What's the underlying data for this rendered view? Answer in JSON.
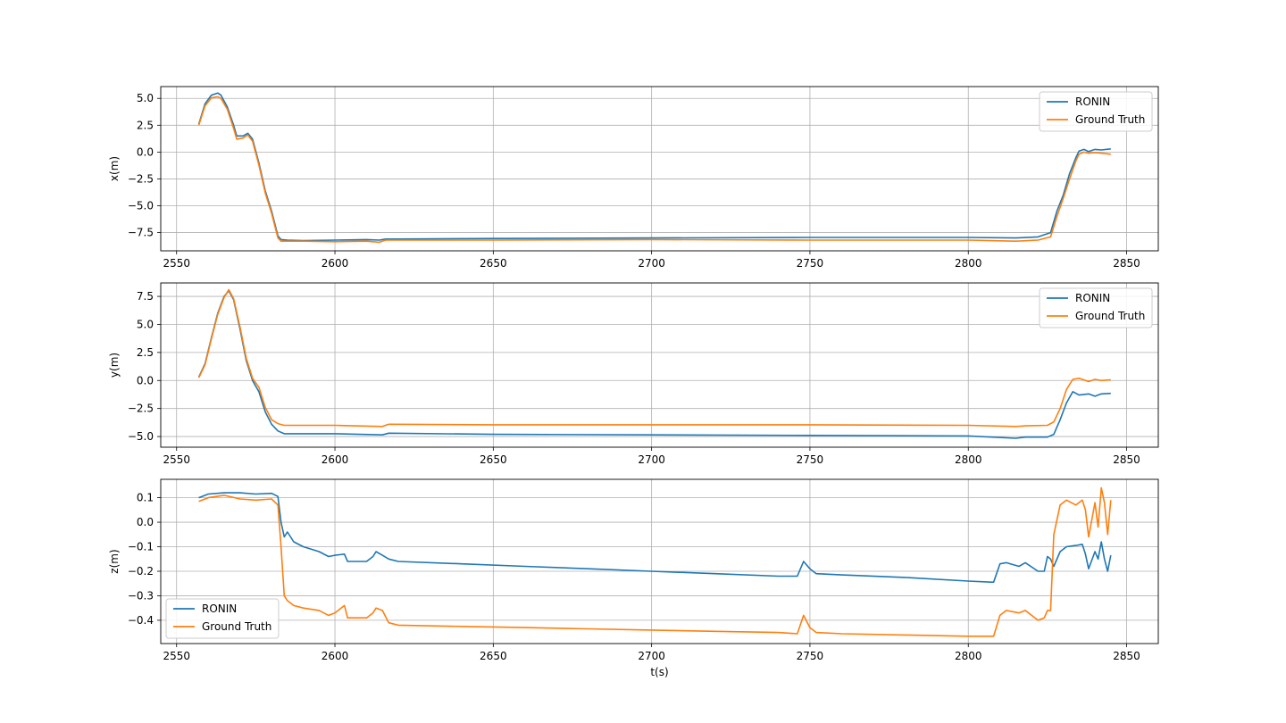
{
  "colors": {
    "ronin": "#1f77b4",
    "ground_truth": "#ff7f0e",
    "grid": "#b0b0b0"
  },
  "chart_data": [
    {
      "type": "line",
      "title": "",
      "xlabel": "",
      "ylabel": "x(m)",
      "xlim": [
        2545,
        2860
      ],
      "ylim": [
        -9.2,
        6.1
      ],
      "xticks": [
        2550,
        2600,
        2650,
        2700,
        2750,
        2800,
        2850
      ],
      "yticks": [
        -7.5,
        -5.0,
        -2.5,
        0.0,
        2.5,
        5.0
      ],
      "ytick_labels": [
        "−7.5",
        "−5.0",
        "−2.5",
        "0.0",
        "2.5",
        "5.0"
      ],
      "grid": true,
      "legend": "upper right",
      "series": [
        {
          "name": "RONIN",
          "color": "#1f77b4",
          "x": [
            2557,
            2559,
            2561,
            2563,
            2564,
            2566,
            2568,
            2569,
            2571,
            2572.5,
            2574,
            2576,
            2578,
            2580,
            2582,
            2583,
            2585,
            2590,
            2600,
            2610,
            2614,
            2616,
            2620,
            2650,
            2700,
            2750,
            2800,
            2815,
            2822,
            2826,
            2828,
            2830,
            2832,
            2834,
            2835,
            2836.5,
            2838,
            2840,
            2842,
            2845
          ],
          "y": [
            2.6,
            4.5,
            5.3,
            5.5,
            5.3,
            4.2,
            2.5,
            1.5,
            1.5,
            1.75,
            1.2,
            -1.0,
            -3.6,
            -5.5,
            -7.8,
            -8.15,
            -8.2,
            -8.25,
            -8.2,
            -8.15,
            -8.2,
            -8.1,
            -8.1,
            -8.05,
            -8.0,
            -7.95,
            -7.95,
            -8.0,
            -7.9,
            -7.5,
            -5.5,
            -4.0,
            -2.0,
            -0.5,
            0.1,
            0.25,
            0.05,
            0.25,
            0.2,
            0.3
          ]
        },
        {
          "name": "Ground Truth",
          "color": "#ff7f0e",
          "x": [
            2557,
            2559,
            2561,
            2563,
            2564,
            2566,
            2568,
            2569,
            2571,
            2572.5,
            2574,
            2576,
            2578,
            2580,
            2582,
            2583,
            2585,
            2590,
            2600,
            2610,
            2614,
            2616,
            2620,
            2650,
            2700,
            2750,
            2800,
            2815,
            2822,
            2826,
            2828,
            2830,
            2832,
            2834,
            2835,
            2836.5,
            2838,
            2840,
            2842,
            2845
          ],
          "y": [
            2.5,
            4.3,
            5.05,
            5.15,
            5.0,
            4.0,
            2.2,
            1.2,
            1.3,
            1.6,
            1.0,
            -1.2,
            -3.8,
            -5.7,
            -8.0,
            -8.3,
            -8.3,
            -8.3,
            -8.35,
            -8.3,
            -8.4,
            -8.2,
            -8.2,
            -8.2,
            -8.15,
            -8.2,
            -8.2,
            -8.3,
            -8.2,
            -7.9,
            -6.0,
            -4.3,
            -2.5,
            -0.8,
            -0.2,
            0.0,
            -0.1,
            -0.05,
            -0.1,
            -0.2
          ]
        }
      ]
    },
    {
      "type": "line",
      "title": "",
      "xlabel": "",
      "ylabel": "y(m)",
      "xlim": [
        2545,
        2860
      ],
      "ylim": [
        -5.95,
        8.7
      ],
      "xticks": [
        2550,
        2600,
        2650,
        2700,
        2750,
        2800,
        2850
      ],
      "yticks": [
        -5.0,
        -2.5,
        0.0,
        2.5,
        5.0,
        7.5
      ],
      "ytick_labels": [
        "−5.0",
        "−2.5",
        "0.0",
        "2.5",
        "5.0",
        "7.5"
      ],
      "grid": true,
      "legend": "upper right",
      "series": [
        {
          "name": "RONIN",
          "color": "#1f77b4",
          "x": [
            2557,
            2559,
            2561,
            2563,
            2565,
            2566.5,
            2568,
            2570,
            2572,
            2574,
            2576,
            2578,
            2580,
            2582,
            2584,
            2590,
            2600,
            2615,
            2617,
            2650,
            2700,
            2750,
            2800,
            2815,
            2818,
            2825,
            2827,
            2829,
            2831,
            2833,
            2835,
            2838,
            2840,
            2842,
            2845
          ],
          "y": [
            0.3,
            1.5,
            3.8,
            6.0,
            7.5,
            8.0,
            7.2,
            4.6,
            1.8,
            0.0,
            -1.0,
            -2.8,
            -3.9,
            -4.5,
            -4.75,
            -4.75,
            -4.75,
            -4.85,
            -4.7,
            -4.8,
            -4.85,
            -4.9,
            -4.95,
            -5.15,
            -5.05,
            -5.05,
            -4.8,
            -3.5,
            -2.0,
            -1.0,
            -1.3,
            -1.2,
            -1.4,
            -1.2,
            -1.15
          ]
        },
        {
          "name": "Ground Truth",
          "color": "#ff7f0e",
          "x": [
            2557,
            2559,
            2561,
            2563,
            2565,
            2566.5,
            2568,
            2570,
            2572,
            2574,
            2576,
            2578,
            2580,
            2582,
            2584,
            2590,
            2600,
            2615,
            2617,
            2650,
            2700,
            2750,
            2800,
            2815,
            2818,
            2825,
            2827,
            2829,
            2831,
            2833,
            2835,
            2838,
            2840,
            2842,
            2845
          ],
          "y": [
            0.25,
            1.4,
            3.7,
            5.9,
            7.4,
            8.1,
            7.3,
            4.8,
            2.0,
            0.2,
            -0.6,
            -2.4,
            -3.5,
            -3.85,
            -4.0,
            -4.0,
            -4.0,
            -4.1,
            -3.9,
            -3.95,
            -3.95,
            -3.95,
            -4.0,
            -4.1,
            -4.05,
            -4.0,
            -3.7,
            -2.5,
            -0.8,
            0.1,
            0.2,
            -0.1,
            0.1,
            0.0,
            0.05
          ]
        }
      ]
    },
    {
      "type": "line",
      "title": "",
      "xlabel": "t(s)",
      "ylabel": "z(m)",
      "xlim": [
        2545,
        2860
      ],
      "ylim": [
        -0.495,
        0.175
      ],
      "xticks": [
        2550,
        2600,
        2650,
        2700,
        2750,
        2800,
        2850
      ],
      "yticks": [
        -0.4,
        -0.3,
        -0.2,
        -0.1,
        0.0,
        0.1
      ],
      "ytick_labels": [
        "−0.4",
        "−0.3",
        "−0.2",
        "−0.1",
        "0.0",
        "0.1"
      ],
      "grid": true,
      "legend": "lower left",
      "series": [
        {
          "name": "RONIN",
          "color": "#1f77b4",
          "x": [
            2557,
            2560,
            2565,
            2570,
            2575,
            2580,
            2582,
            2583,
            2584,
            2585,
            2587,
            2590,
            2595,
            2598,
            2600,
            2603,
            2604,
            2610,
            2612,
            2613,
            2615,
            2617,
            2620,
            2640,
            2660,
            2680,
            2700,
            2720,
            2740,
            2746,
            2748,
            2750,
            2752,
            2760,
            2780,
            2800,
            2808,
            2810,
            2812,
            2816,
            2818,
            2822,
            2824,
            2825,
            2826,
            2827,
            2829,
            2831,
            2834,
            2836,
            2837,
            2838,
            2840,
            2841,
            2842,
            2843,
            2844,
            2845
          ],
          "y": [
            0.1,
            0.115,
            0.12,
            0.12,
            0.115,
            0.118,
            0.105,
            0.0,
            -0.06,
            -0.04,
            -0.08,
            -0.1,
            -0.12,
            -0.14,
            -0.135,
            -0.13,
            -0.16,
            -0.16,
            -0.14,
            -0.12,
            -0.135,
            -0.15,
            -0.16,
            -0.17,
            -0.18,
            -0.19,
            -0.2,
            -0.21,
            -0.22,
            -0.22,
            -0.16,
            -0.19,
            -0.21,
            -0.215,
            -0.225,
            -0.24,
            -0.245,
            -0.17,
            -0.165,
            -0.18,
            -0.165,
            -0.2,
            -0.2,
            -0.14,
            -0.15,
            -0.18,
            -0.12,
            -0.1,
            -0.095,
            -0.09,
            -0.13,
            -0.19,
            -0.12,
            -0.15,
            -0.08,
            -0.15,
            -0.2,
            -0.135
          ]
        },
        {
          "name": "Ground Truth",
          "color": "#ff7f0e",
          "x": [
            2557,
            2560,
            2565,
            2570,
            2575,
            2580,
            2582,
            2583,
            2584,
            2585,
            2587,
            2590,
            2595,
            2598,
            2600,
            2603,
            2604,
            2610,
            2612,
            2613,
            2615,
            2617,
            2620,
            2640,
            2660,
            2680,
            2700,
            2720,
            2740,
            2746,
            2748,
            2750,
            2752,
            2760,
            2780,
            2800,
            2808,
            2810,
            2812,
            2816,
            2818,
            2822,
            2824,
            2825,
            2826,
            2827,
            2829,
            2831,
            2834,
            2836,
            2837,
            2838,
            2840,
            2841,
            2842,
            2843,
            2844,
            2845
          ],
          "y": [
            0.085,
            0.1,
            0.11,
            0.095,
            0.09,
            0.095,
            0.07,
            -0.1,
            -0.3,
            -0.32,
            -0.34,
            -0.35,
            -0.36,
            -0.38,
            -0.37,
            -0.34,
            -0.39,
            -0.39,
            -0.37,
            -0.35,
            -0.36,
            -0.41,
            -0.42,
            -0.425,
            -0.43,
            -0.435,
            -0.44,
            -0.445,
            -0.45,
            -0.455,
            -0.38,
            -0.43,
            -0.45,
            -0.455,
            -0.46,
            -0.465,
            -0.465,
            -0.38,
            -0.36,
            -0.37,
            -0.36,
            -0.4,
            -0.39,
            -0.36,
            -0.36,
            -0.05,
            0.07,
            0.09,
            0.07,
            0.09,
            0.05,
            -0.06,
            0.08,
            -0.02,
            0.14,
            0.08,
            -0.05,
            0.09
          ]
        }
      ]
    }
  ]
}
